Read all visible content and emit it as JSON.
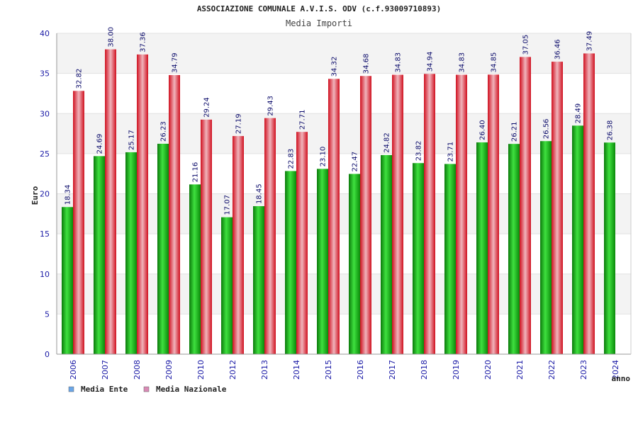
{
  "chart_data": {
    "type": "bar",
    "title": "ASSOCIAZIONE COMUNALE A.V.I.S. ODV (c.f.93009710893)",
    "subtitle": "Media Importi",
    "ylabel": "Euro",
    "xlabel": "anno",
    "ylim": [
      0,
      40
    ],
    "yticks": [
      0,
      5,
      10,
      15,
      20,
      25,
      30,
      35,
      40
    ],
    "grid": true,
    "legend_position": "bottom-left",
    "categories": [
      "2006",
      "2007",
      "2008",
      "2009",
      "2010",
      "2012",
      "2013",
      "2014",
      "2015",
      "2016",
      "2017",
      "2018",
      "2019",
      "2020",
      "2021",
      "2022",
      "2023",
      "2024"
    ],
    "series": [
      {
        "name": "Media Ente",
        "color": "#11b511",
        "legend_color": "#6aa6e8",
        "values": [
          18.34,
          24.69,
          25.17,
          26.23,
          21.16,
          17.07,
          18.45,
          22.83,
          23.1,
          22.47,
          24.82,
          23.82,
          23.71,
          26.4,
          26.21,
          26.56,
          28.49,
          26.38
        ],
        "labels": [
          "18.34",
          "24.69",
          "25.17",
          "26.23",
          "21.16",
          "17.07",
          "18.45",
          "22.83",
          "23.10",
          "22.47",
          "24.82",
          "23.82",
          "23.71",
          "26.40",
          "26.21",
          "26.56",
          "28.49",
          "26.38"
        ]
      },
      {
        "name": "Media Nazionale",
        "color": "#e8192c",
        "legend_color": "#d98ab5",
        "values": [
          32.82,
          38.0,
          37.36,
          34.79,
          29.24,
          27.19,
          29.43,
          27.71,
          34.32,
          34.68,
          34.83,
          34.94,
          34.83,
          34.85,
          37.05,
          36.46,
          37.49,
          null
        ],
        "labels": [
          "32.82",
          "38.00",
          "37.36",
          "34.79",
          "29.24",
          "27.19",
          "29.43",
          "27.71",
          "34.32",
          "34.68",
          "34.83",
          "34.94",
          "34.83",
          "34.85",
          "37.05",
          "36.46",
          "37.49",
          null
        ]
      }
    ]
  }
}
